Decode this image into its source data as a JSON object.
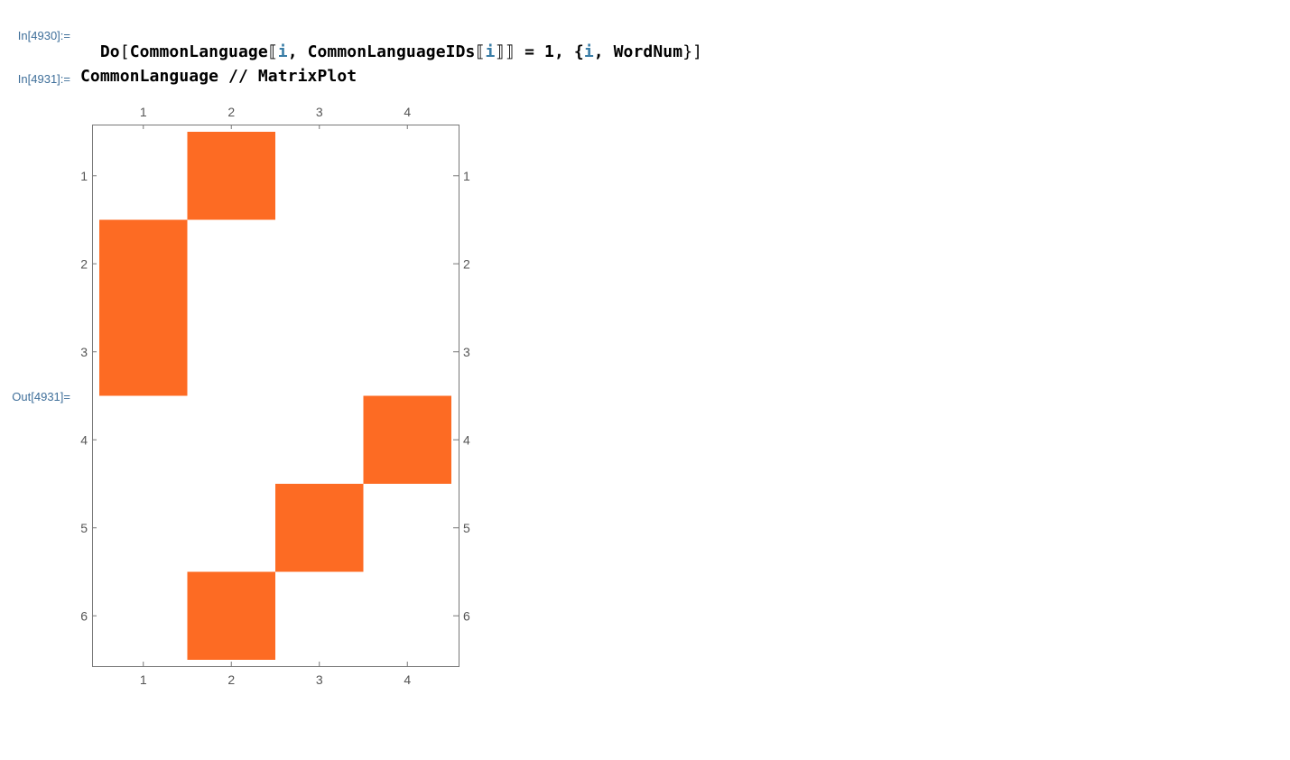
{
  "cells": [
    {
      "label": "In[4930]:=",
      "code": {
        "head": "Do",
        "open": "[",
        "fn": "CommonLanguage",
        "part_open": "⟦",
        "var": "i",
        "sep": ", ",
        "inner_fn": "CommonLanguageIDs",
        "inner_part_open": "⟦",
        "inner_var": "i",
        "inner_part_close": "⟧",
        "part_close": "⟧",
        "assign": " = 1, {",
        "iter_var": "i",
        "iter_sep": ", ",
        "iter_max": "WordNum",
        "close": "}]"
      }
    },
    {
      "label": "In[4931]:=",
      "code_text": "CommonLanguage // MatrixPlot"
    },
    {
      "label": "Out[4931]="
    }
  ],
  "chart_data": {
    "type": "heatmap",
    "rows": 6,
    "cols": 4,
    "x_ticks": [
      "1",
      "2",
      "3",
      "4"
    ],
    "y_ticks": [
      "1",
      "2",
      "3",
      "4",
      "5",
      "6"
    ],
    "matrix": [
      [
        0,
        1,
        0,
        0
      ],
      [
        1,
        0,
        0,
        0
      ],
      [
        1,
        0,
        0,
        0
      ],
      [
        0,
        0,
        0,
        1
      ],
      [
        0,
        0,
        1,
        0
      ],
      [
        0,
        1,
        0,
        0
      ]
    ],
    "filled_color": "#fd6b23",
    "empty_color": "#ffffff",
    "frame_color": "#777777"
  }
}
